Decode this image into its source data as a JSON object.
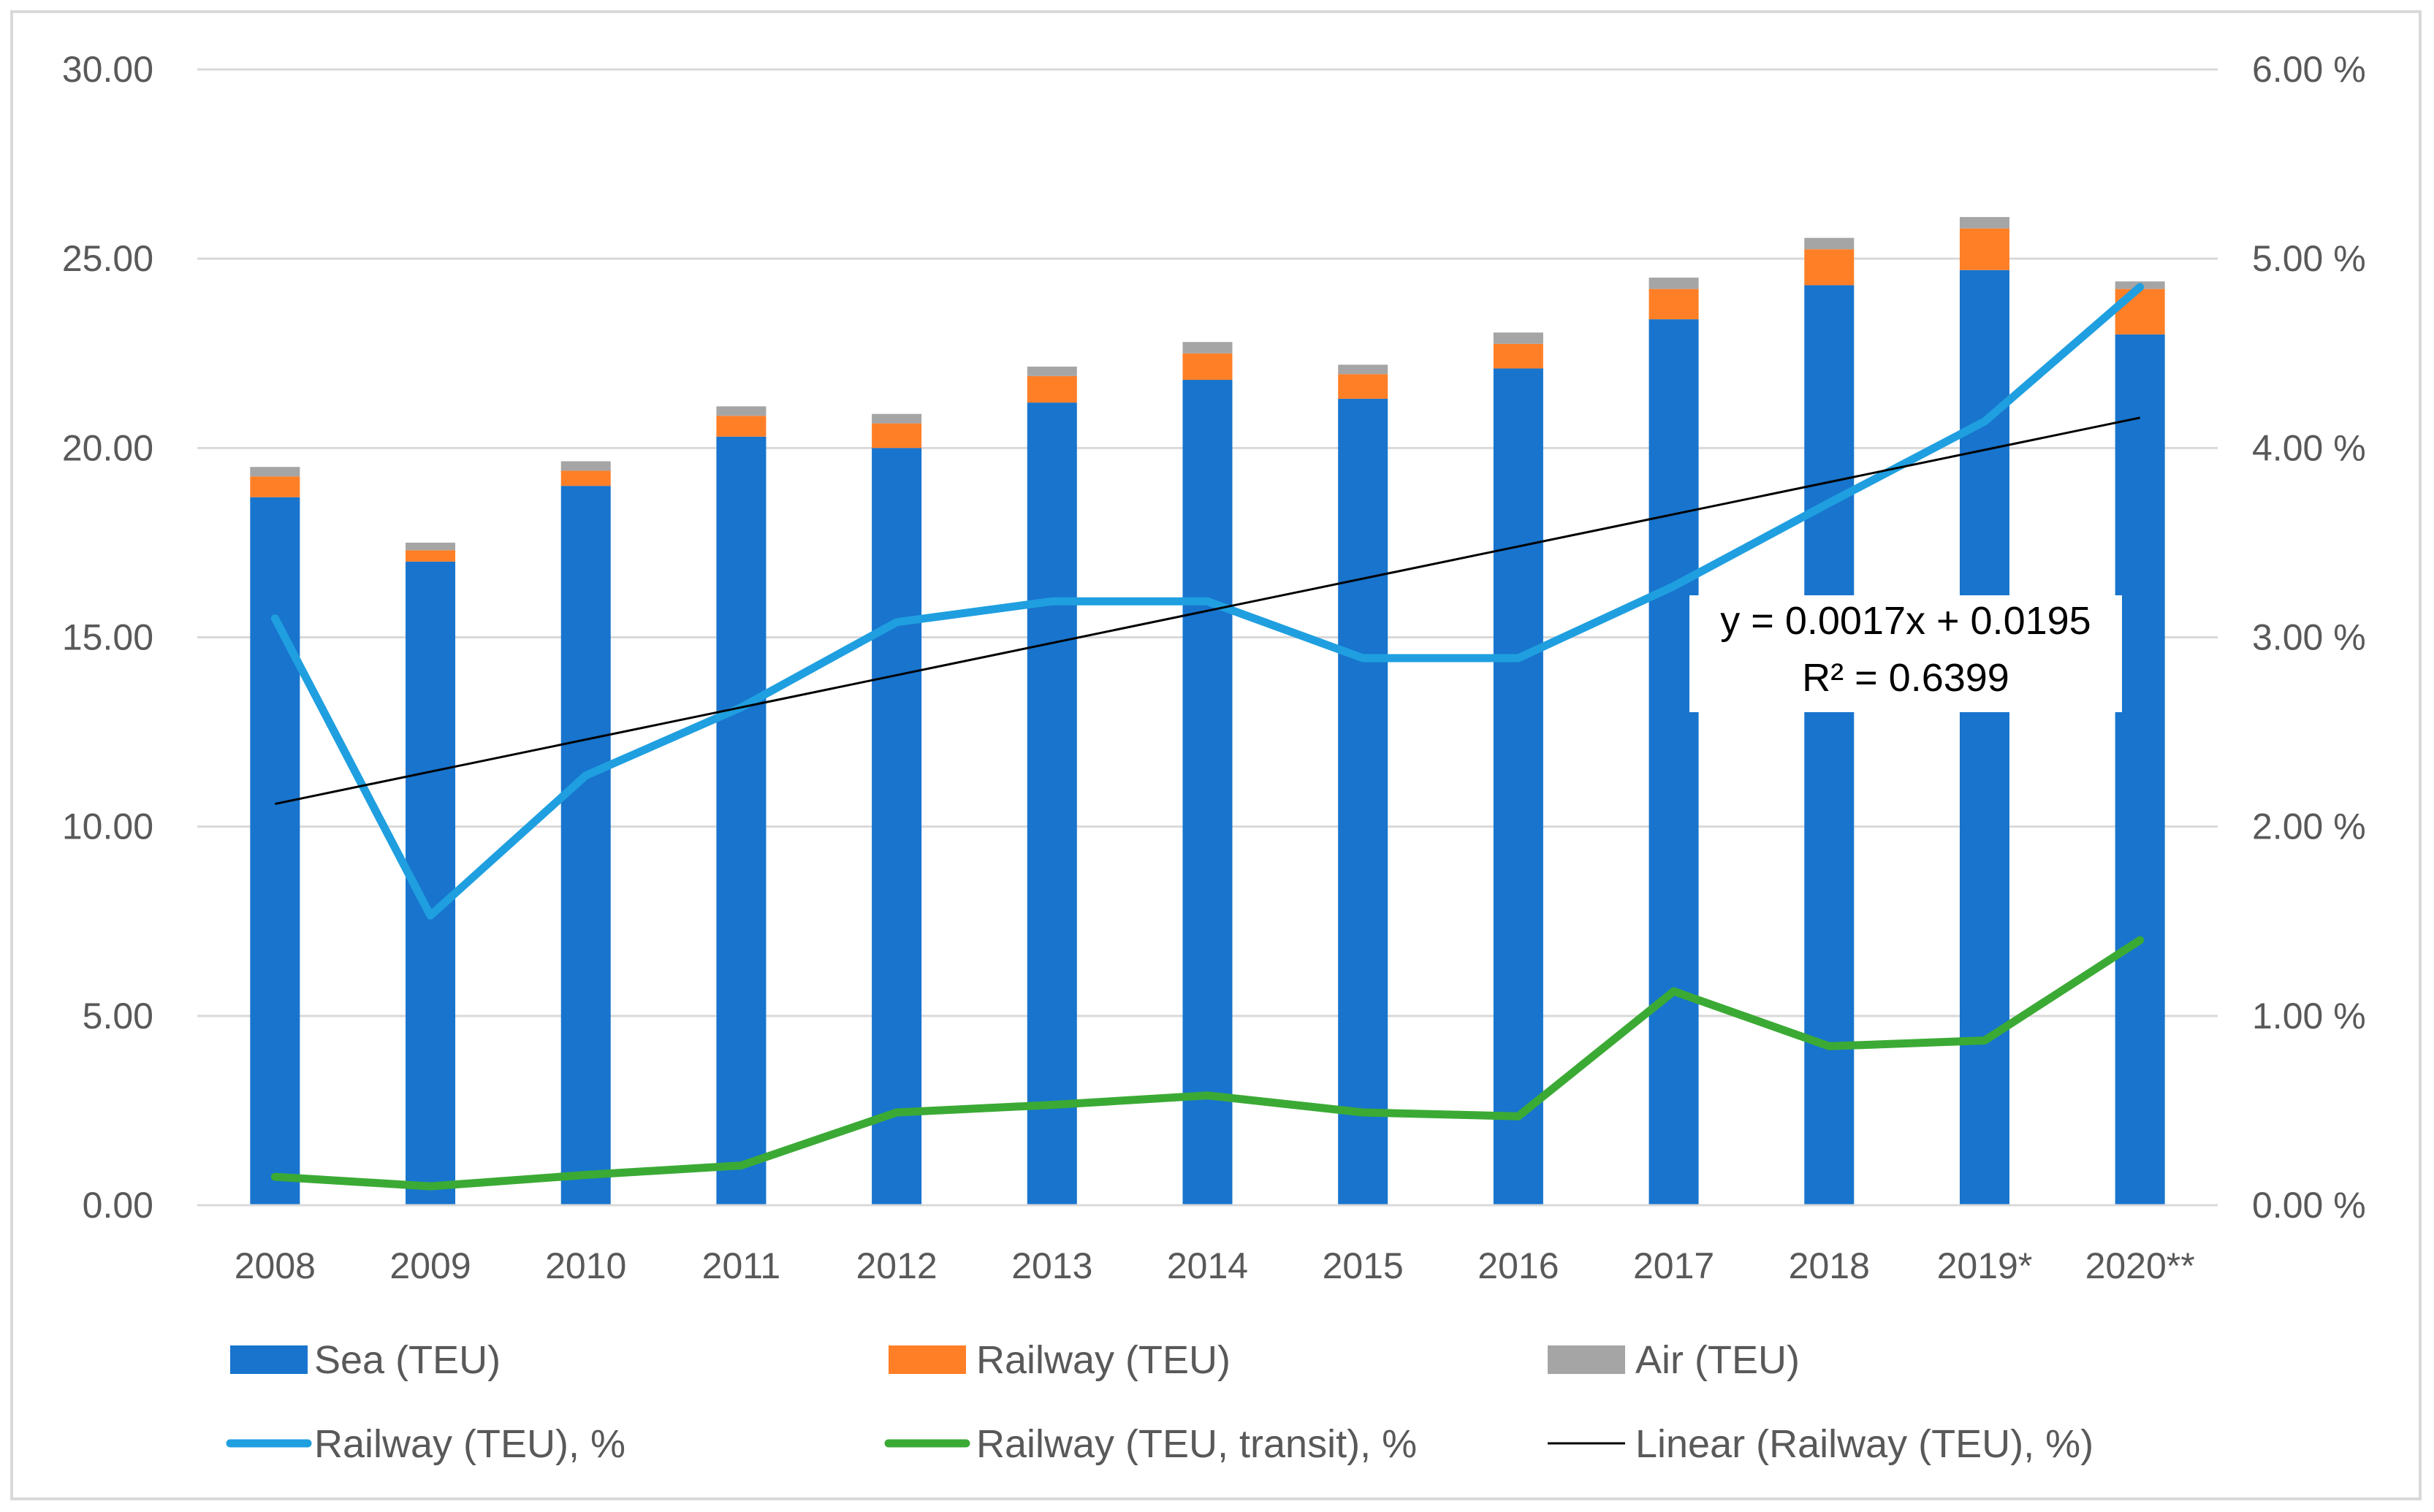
{
  "chart_data": {
    "type": "bar",
    "categories": [
      "2008",
      "2009",
      "2010",
      "2011",
      "2012",
      "2013",
      "2014",
      "2015",
      "2016",
      "2017",
      "2018",
      "2019*",
      "2020**"
    ],
    "bar_series": [
      {
        "name": "Sea (TEU)",
        "color": "#1874CD",
        "values": [
          18.7,
          17.0,
          19.0,
          20.3,
          20.0,
          21.2,
          21.8,
          21.3,
          22.1,
          23.4,
          24.3,
          24.7,
          23.0
        ]
      },
      {
        "name": "Railway (TEU)",
        "color": "#FF7F27",
        "values": [
          0.55,
          0.3,
          0.4,
          0.55,
          0.65,
          0.7,
          0.7,
          0.65,
          0.65,
          0.8,
          0.95,
          1.1,
          1.2
        ]
      },
      {
        "name": "Air (TEU)",
        "color": "#A5A5A5",
        "values": [
          0.25,
          0.2,
          0.25,
          0.25,
          0.25,
          0.25,
          0.3,
          0.25,
          0.3,
          0.3,
          0.3,
          0.3,
          0.2
        ]
      }
    ],
    "line_series": [
      {
        "name": "Railway (TEU), %",
        "color": "#1F9FE0",
        "values": [
          3.1,
          1.53,
          2.27,
          2.63,
          3.08,
          3.19,
          3.19,
          2.89,
          2.89,
          3.27,
          3.71,
          4.14,
          4.85
        ]
      },
      {
        "name": "Railway (TEU, transit), %",
        "color": "#3BAA35",
        "values": [
          0.15,
          0.1,
          0.16,
          0.21,
          0.49,
          0.53,
          0.58,
          0.49,
          0.47,
          1.13,
          0.84,
          0.87,
          1.4
        ]
      }
    ],
    "trendline": {
      "name": "Linear (Railway (TEU), %)",
      "color": "#000000",
      "slope": 0.0017,
      "intercept": 0.0195,
      "equation": "y = 0.0017x + 0.0195",
      "r_squared": "R² = 0.6399"
    },
    "y_left": {
      "range": [
        0,
        30
      ],
      "ticks": [
        "0.00",
        "5.00",
        "10.00",
        "15.00",
        "20.00",
        "25.00",
        "30.00"
      ]
    },
    "y_right": {
      "range": [
        0,
        6
      ],
      "ticks": [
        "0.00 %",
        "1.00 %",
        "2.00 %",
        "3.00 %",
        "4.00 %",
        "5.00 %",
        "6.00 %"
      ]
    },
    "grid": true,
    "legend_position": "bottom"
  }
}
